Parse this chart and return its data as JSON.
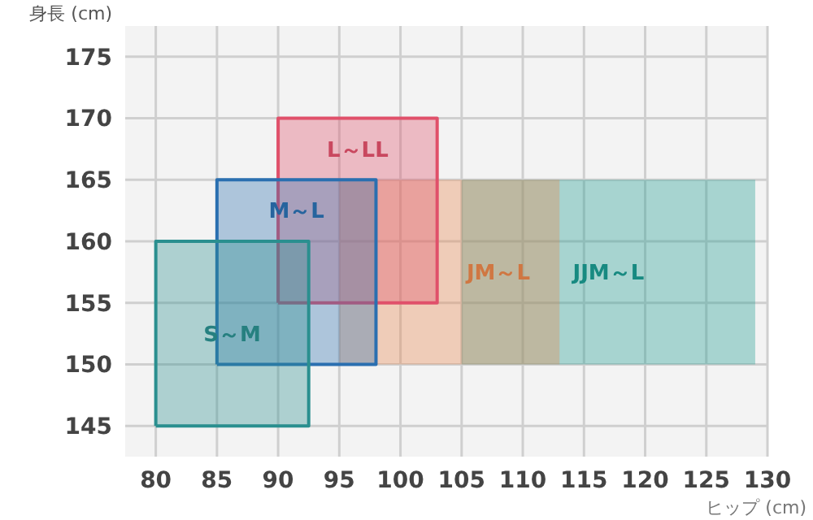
{
  "chart_data": {
    "type": "area",
    "xlabel": "ヒップ (cm)",
    "ylabel": "身長 (cm)",
    "xlim": [
      77.5,
      130
    ],
    "ylim": [
      142.5,
      177.5
    ],
    "xticks": [
      80,
      85,
      90,
      95,
      100,
      105,
      110,
      115,
      120,
      125,
      130
    ],
    "yticks": [
      145,
      150,
      155,
      160,
      165,
      170,
      175
    ],
    "grid": true,
    "marker": "none",
    "series": [
      {
        "name": "JJM～L",
        "color": "#1a9a90",
        "x": [
          105,
          129,
          129,
          105,
          105
        ],
        "values": [
          150,
          150,
          165,
          165,
          150
        ]
      },
      {
        "name": "JM～L",
        "color": "#e8844a",
        "x": [
          95,
          113,
          113,
          95,
          95
        ],
        "values": [
          150,
          150,
          165,
          165,
          150
        ]
      },
      {
        "name": "L～LL",
        "color": "#e0506a",
        "x": [
          90,
          103,
          103,
          90,
          90
        ],
        "values": [
          155,
          155,
          170,
          170,
          155
        ]
      },
      {
        "name": "M～L",
        "color": "#2a6fb0",
        "x": [
          85,
          98,
          98,
          85,
          85
        ],
        "values": [
          150,
          150,
          165,
          165,
          150
        ]
      },
      {
        "name": "S～M",
        "color": "#2a8f8f",
        "x": [
          80,
          92.5,
          92.5,
          80,
          80
        ],
        "values": [
          145,
          145,
          160,
          160,
          145
        ]
      }
    ]
  }
}
